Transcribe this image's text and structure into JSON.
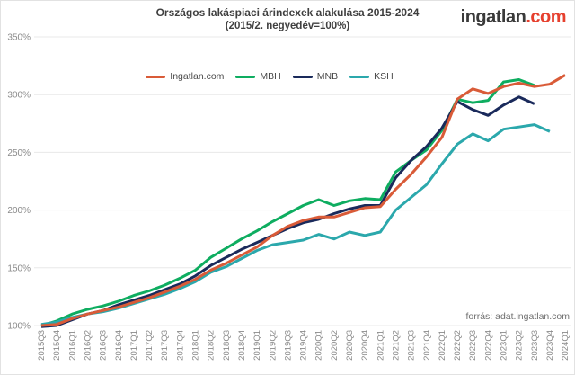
{
  "title": {
    "line1": "Országos lakáspiaci árindexek alakulása 2015-2024",
    "line2": "(2015/2. negyedév=100%)"
  },
  "logo": {
    "part1": "ingatlan",
    "part2": ".com"
  },
  "source": {
    "text": "forrás: adat.ingatlan.com"
  },
  "colors": {
    "ingatlan_line": "#d95b38",
    "mbh_line": "#0ead60",
    "mnb_line": "#1a2a5b",
    "ksh_line": "#2ba8ac",
    "logo_accent": "#e6402e",
    "grid": "#e8e8e8",
    "axis_text": "#8a8a8a"
  },
  "chart_data": {
    "type": "line",
    "title": "Országos lakáspiaci árindexek alakulása 2015-2024",
    "subtitle": "(2015/2. negyedév=100%)",
    "grid": "horizontal",
    "legend_position": "top",
    "ylim": [
      100,
      350
    ],
    "y_ticks": [
      100,
      150,
      200,
      250,
      300,
      350
    ],
    "y_tick_suffix": "%",
    "categories": [
      "2015Q3",
      "2015Q4",
      "2016Q1",
      "2016Q2",
      "2016Q3",
      "2016Q4",
      "2017Q1",
      "2017Q2",
      "2017Q3",
      "2017Q4",
      "2018Q1",
      "2018Q2",
      "2018Q3",
      "2018Q4",
      "2019Q1",
      "2019Q2",
      "2019Q3",
      "2019Q4",
      "2020Q1",
      "2020Q2",
      "2020Q3",
      "2020Q4",
      "2021Q1",
      "2021Q2",
      "2021Q3",
      "2021Q4",
      "2022Q1",
      "2022Q2",
      "2022Q3",
      "2022Q4",
      "2023Q1",
      "2023Q2",
      "2023Q3",
      "2023Q4",
      "2024Q1"
    ],
    "series": [
      {
        "name": "Ingatlan.com",
        "color": "#d95b38",
        "values": [
          100,
          101,
          106,
          110,
          113,
          116,
          120,
          124,
          129,
          134,
          140,
          148,
          154,
          161,
          168,
          178,
          186,
          191,
          194,
          194,
          198,
          202,
          203,
          218,
          231,
          246,
          263,
          296,
          305,
          301,
          307,
          310,
          307,
          309,
          317
        ]
      },
      {
        "name": "MBH",
        "color": "#0ead60",
        "values": [
          100,
          104,
          110,
          114,
          117,
          121,
          126,
          130,
          135,
          141,
          148,
          159,
          167,
          175,
          182,
          190,
          197,
          204,
          209,
          204,
          208,
          210,
          209,
          233,
          243,
          252,
          269,
          296,
          293,
          295,
          311,
          313,
          308,
          null,
          null
        ]
      },
      {
        "name": "MNB",
        "color": "#1a2a5b",
        "values": [
          99,
          100,
          105,
          110,
          113,
          118,
          122,
          126,
          131,
          136,
          143,
          152,
          159,
          166,
          172,
          178,
          184,
          189,
          192,
          197,
          201,
          204,
          204,
          228,
          243,
          255,
          271,
          294,
          287,
          282,
          291,
          298,
          292,
          null,
          null
        ]
      },
      {
        "name": "KSH",
        "color": "#2ba8ac",
        "values": [
          101,
          103,
          107,
          110,
          112,
          115,
          119,
          123,
          127,
          132,
          138,
          146,
          151,
          158,
          165,
          170,
          172,
          174,
          179,
          175,
          181,
          178,
          181,
          200,
          211,
          222,
          240,
          257,
          266,
          260,
          270,
          272,
          274,
          268,
          null
        ]
      }
    ]
  }
}
